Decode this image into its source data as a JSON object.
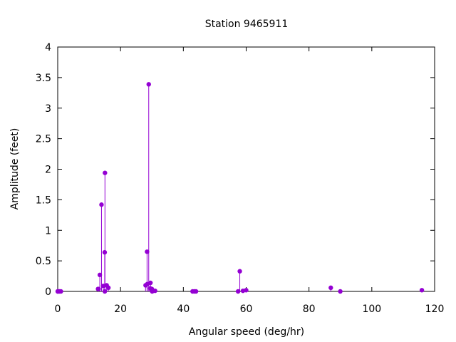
{
  "chart_data": {
    "type": "scatter",
    "style": "impulses-with-points",
    "title": "Station 9465911",
    "xlabel": "Angular speed (deg/hr)",
    "ylabel": "Amplitude (feet)",
    "xlim": [
      0,
      120
    ],
    "ylim": [
      0,
      4
    ],
    "xticks": [
      0,
      20,
      40,
      60,
      80,
      100,
      120
    ],
    "yticks": [
      0,
      0.5,
      1,
      1.5,
      2,
      2.5,
      3,
      3.5,
      4
    ],
    "ytick_labels": [
      "0",
      "0.5",
      "1",
      "1.5",
      "2",
      "2.5",
      "3",
      "3.5",
      "4"
    ],
    "grid": false,
    "legend": "none",
    "color": "#9400d3",
    "series": [
      {
        "points": [
          {
            "x": 0.0,
            "y": 0.0
          },
          {
            "x": 0.04,
            "y": 0.0
          },
          {
            "x": 0.08,
            "y": 0.0
          },
          {
            "x": 0.54,
            "y": 0.0
          },
          {
            "x": 1.02,
            "y": 0.0
          },
          {
            "x": 12.85,
            "y": 0.04
          },
          {
            "x": 13.0,
            "y": 0.04
          },
          {
            "x": 13.4,
            "y": 0.27
          },
          {
            "x": 13.94,
            "y": 1.42
          },
          {
            "x": 14.5,
            "y": 0.09
          },
          {
            "x": 14.96,
            "y": 0.64
          },
          {
            "x": 15.0,
            "y": 0.0
          },
          {
            "x": 15.04,
            "y": 1.94
          },
          {
            "x": 15.59,
            "y": 0.1
          },
          {
            "x": 16.14,
            "y": 0.06
          },
          {
            "x": 27.97,
            "y": 0.1
          },
          {
            "x": 28.44,
            "y": 0.65
          },
          {
            "x": 28.51,
            "y": 0.12
          },
          {
            "x": 28.98,
            "y": 3.39
          },
          {
            "x": 29.46,
            "y": 0.05
          },
          {
            "x": 29.53,
            "y": 0.14
          },
          {
            "x": 29.96,
            "y": 0.04
          },
          {
            "x": 30.0,
            "y": 0.01
          },
          {
            "x": 30.08,
            "y": 0.0
          },
          {
            "x": 31.0,
            "y": 0.01
          },
          {
            "x": 42.93,
            "y": 0.0
          },
          {
            "x": 43.48,
            "y": 0.0
          },
          {
            "x": 44.03,
            "y": 0.0
          },
          {
            "x": 57.42,
            "y": 0.0
          },
          {
            "x": 57.97,
            "y": 0.33
          },
          {
            "x": 58.98,
            "y": 0.01
          },
          {
            "x": 60.0,
            "y": 0.02
          },
          {
            "x": 86.95,
            "y": 0.06
          },
          {
            "x": 89.97,
            "y": 0.0
          },
          {
            "x": 115.94,
            "y": 0.02
          }
        ]
      }
    ]
  }
}
